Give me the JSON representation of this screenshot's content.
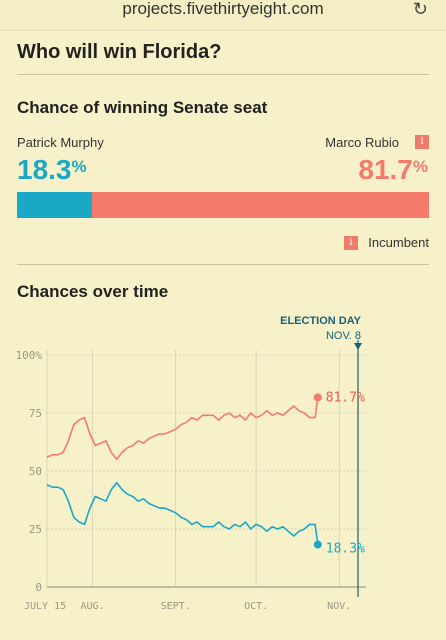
{
  "browser": {
    "url": "projects.fivethirtyeight.com",
    "reload_icon": "reload-icon"
  },
  "page_title": "Who will win Florida?",
  "senate": {
    "title": "Chance of winning Senate seat",
    "left_name": "Patrick Murphy",
    "left_pct": "18.3",
    "right_name": "Marco Rubio",
    "right_pct": "81.7",
    "pct_sign": "%",
    "incumbent_badge": "i",
    "incumbent_label": "Incumbent",
    "left_share": 0.183,
    "right_share": 0.817,
    "colors": {
      "murphy": "#1aa8c6",
      "rubio": "#f47a6c"
    }
  },
  "over_time": {
    "title": "Chances over time",
    "election_day_label": "ELECTION DAY",
    "election_day_date": "NOV. 8",
    "rubio_end_label": "81.7%",
    "murphy_end_label": "18.3%"
  },
  "chart_data": {
    "type": "line",
    "ylim": [
      0,
      100
    ],
    "y_ticks": [
      "100%",
      "75",
      "50",
      "25",
      "0"
    ],
    "y_tick_values": [
      100,
      75,
      50,
      25,
      0
    ],
    "x_tick_labels": [
      "JULY 15",
      "AUG.",
      "SEPT.",
      "OCT.",
      "NOV."
    ],
    "x_tick_days": [
      0,
      17,
      48,
      78,
      109
    ],
    "x_range_days": [
      0,
      116
    ],
    "election_day": 116,
    "grid": true,
    "series": [
      {
        "name": "Marco Rubio",
        "color": "#f47a6c",
        "x": [
          0,
          2,
          4,
          6,
          8,
          10,
          12,
          14,
          16,
          18,
          20,
          22,
          24,
          26,
          28,
          30,
          32,
          34,
          36,
          38,
          40,
          42,
          44,
          46,
          48,
          50,
          52,
          54,
          56,
          58,
          60,
          62,
          64,
          66,
          68,
          70,
          72,
          74,
          76,
          78,
          80,
          82,
          84,
          86,
          88,
          90,
          92,
          94,
          96,
          98,
          100,
          101
        ],
        "values": [
          56,
          57,
          57,
          58,
          63,
          70,
          72,
          73,
          66,
          61,
          62,
          63,
          58,
          55,
          58,
          60,
          61,
          63,
          62,
          64,
          65,
          66,
          66,
          67,
          68,
          70,
          71,
          73,
          72,
          74,
          74,
          74,
          72,
          74,
          75,
          73,
          74,
          72,
          75,
          73,
          74,
          76,
          74,
          75,
          74,
          76,
          78,
          76,
          75,
          73,
          73,
          81.7
        ]
      },
      {
        "name": "Patrick Murphy",
        "color": "#1aa8c6",
        "x": [
          0,
          2,
          4,
          6,
          8,
          10,
          12,
          14,
          16,
          18,
          20,
          22,
          24,
          26,
          28,
          30,
          32,
          34,
          36,
          38,
          40,
          42,
          44,
          46,
          48,
          50,
          52,
          54,
          56,
          58,
          60,
          62,
          64,
          66,
          68,
          70,
          72,
          74,
          76,
          78,
          80,
          82,
          84,
          86,
          88,
          90,
          92,
          94,
          96,
          98,
          100,
          101
        ],
        "values": [
          44,
          43,
          43,
          42,
          37,
          30,
          28,
          27,
          34,
          39,
          38,
          37,
          42,
          45,
          42,
          40,
          39,
          37,
          38,
          36,
          35,
          34,
          34,
          33,
          32,
          30,
          29,
          27,
          28,
          26,
          26,
          26,
          28,
          26,
          25,
          27,
          26,
          28,
          25,
          27,
          26,
          24,
          26,
          25,
          26,
          24,
          22,
          24,
          25,
          27,
          27,
          18.3
        ]
      }
    ]
  }
}
